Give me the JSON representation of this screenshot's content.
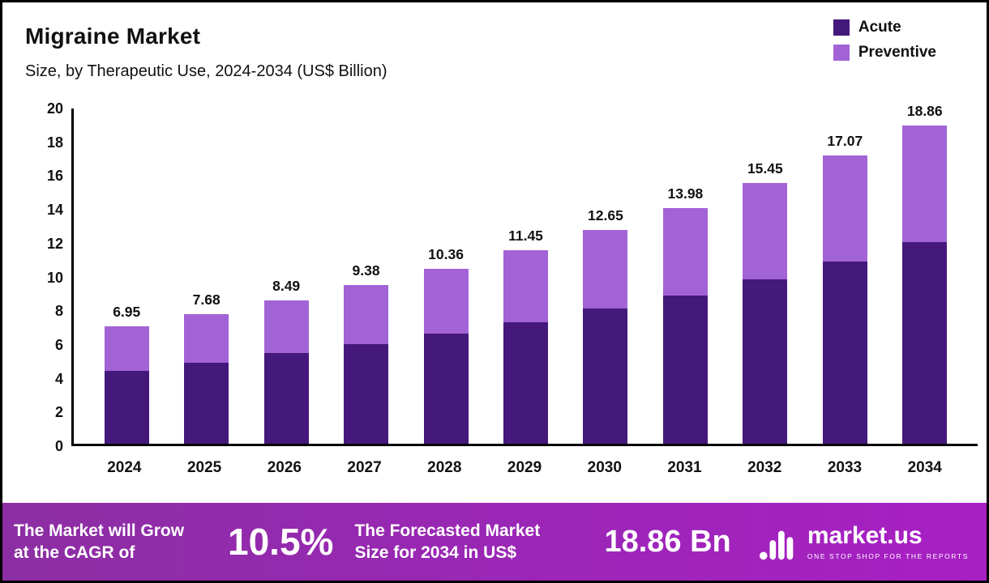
{
  "header": {
    "title": "Migraine Market",
    "subtitle": "Size, by Therapeutic Use, 2024-2034 (US$ Billion)"
  },
  "legend": {
    "items": [
      {
        "label": "Acute",
        "color": "#45187b"
      },
      {
        "label": "Preventive",
        "color": "#a263d7"
      }
    ]
  },
  "chart_data": {
    "type": "bar",
    "stacked": true,
    "unit": "US$ Billion",
    "title": "Migraine Market",
    "subtitle": "Size, by Therapeutic Use, 2024-2034 (US$ Billion)",
    "categories": [
      "2024",
      "2025",
      "2026",
      "2027",
      "2028",
      "2029",
      "2030",
      "2031",
      "2032",
      "2033",
      "2034"
    ],
    "series": [
      {
        "name": "Acute",
        "color": "#45187b",
        "values": [
          4.3,
          4.8,
          5.35,
          5.9,
          6.5,
          7.2,
          8.0,
          8.8,
          9.75,
          10.8,
          11.95
        ]
      },
      {
        "name": "Preventive",
        "color": "#a263d7",
        "values": [
          2.65,
          2.88,
          3.14,
          3.48,
          3.86,
          4.25,
          4.65,
          5.18,
          5.7,
          6.27,
          6.91
        ]
      }
    ],
    "totals": [
      6.95,
      7.68,
      8.49,
      9.38,
      10.36,
      11.45,
      12.65,
      13.98,
      15.45,
      17.07,
      18.86
    ],
    "total_labels": [
      "6.95",
      "7.68",
      "8.49",
      "9.38",
      "10.36",
      "11.45",
      "12.65",
      "13.98",
      "15.45",
      "17.07",
      "18.86"
    ],
    "ylim": [
      0,
      20
    ],
    "ytick_step": 2,
    "grid": false,
    "legend_position": "top-right"
  },
  "footer": {
    "cagr_label_lines": [
      "The Market will Grow",
      "at the CAGR of"
    ],
    "cagr_value": "10.5%",
    "forecast_label_lines": [
      "The Forecasted Market",
      "Size for 2034 in US$"
    ],
    "forecast_value": "18.86 Bn",
    "brand_name": "market.us",
    "brand_tagline": "ONE STOP SHOP FOR THE REPORTS"
  }
}
